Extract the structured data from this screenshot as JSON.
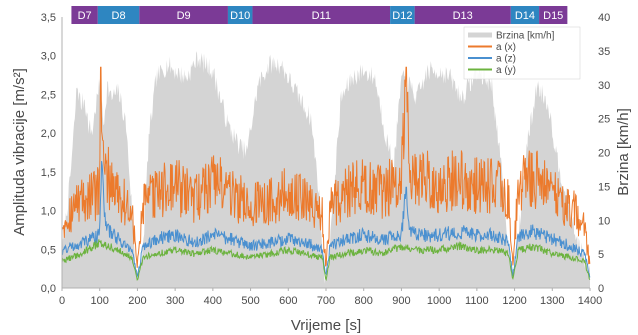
{
  "chart_data": {
    "type": "line",
    "xlabel": "Vrijeme [s]",
    "ylabel": "Amplituda vibracije [m/s²]",
    "y2label": "Brzina [km/h]",
    "xlim": [
      0,
      1400
    ],
    "ylim": [
      0,
      3.5
    ],
    "y2lim": [
      0,
      40
    ],
    "x_ticks": [
      0,
      100,
      200,
      300,
      400,
      500,
      600,
      700,
      800,
      900,
      1000,
      1100,
      1200,
      1300,
      1400
    ],
    "y_ticks": [
      "0,0",
      "0,5",
      "1,0",
      "1,5",
      "2,0",
      "2,5",
      "3,0",
      "3,5"
    ],
    "y2_ticks": [
      "0",
      "5",
      "10",
      "15",
      "20",
      "25",
      "30",
      "35",
      "40"
    ],
    "grid": false,
    "legend_position": "top-right",
    "segments": [
      {
        "label": "D7",
        "start": 25,
        "end": 95,
        "color": "#7b3a96"
      },
      {
        "label": "D8",
        "start": 95,
        "end": 205,
        "color": "#2e86c1"
      },
      {
        "label": "D9",
        "start": 205,
        "end": 440,
        "color": "#7b3a96"
      },
      {
        "label": "D10",
        "start": 440,
        "end": 505,
        "color": "#2e86c1"
      },
      {
        "label": "D11",
        "start": 505,
        "end": 870,
        "color": "#7b3a96"
      },
      {
        "label": "D12",
        "start": 870,
        "end": 935,
        "color": "#2e86c1"
      },
      {
        "label": "D13",
        "start": 935,
        "end": 1190,
        "color": "#7b3a96"
      },
      {
        "label": "D14",
        "start": 1190,
        "end": 1265,
        "color": "#2e86c1"
      },
      {
        "label": "D15",
        "start": 1265,
        "end": 1340,
        "color": "#7b3a96"
      }
    ],
    "series": [
      {
        "name": "Brzina [km/h]",
        "axis": "right",
        "kind": "area",
        "color": "#d4d4d4",
        "x": [
          0,
          20,
          30,
          40,
          50,
          60,
          70,
          80,
          90,
          100,
          110,
          120,
          130,
          150,
          170,
          185,
          195,
          205,
          215,
          230,
          250,
          280,
          300,
          330,
          360,
          400,
          440,
          470,
          490,
          505,
          520,
          550,
          580,
          600,
          630,
          660,
          680,
          695,
          705,
          720,
          740,
          770,
          800,
          830,
          860,
          880,
          900,
          920,
          940,
          970,
          1000,
          1030,
          1060,
          1100,
          1140,
          1170,
          1185,
          1200,
          1215,
          1230,
          1260,
          1290,
          1310,
          1330,
          1345,
          1360,
          1380,
          1400
        ],
        "values": [
          5,
          15,
          22,
          30,
          27,
          28,
          24,
          23,
          27,
          30,
          24,
          30,
          28,
          29,
          24,
          12,
          3,
          2,
          6,
          22,
          31,
          33,
          32,
          31,
          34,
          32,
          24,
          21,
          20,
          25,
          30,
          33,
          33,
          31,
          28,
          25,
          15,
          2,
          3,
          14,
          28,
          31,
          32,
          31,
          22,
          18,
          31,
          30,
          28,
          32,
          32,
          31,
          28,
          32,
          30,
          15,
          5,
          3,
          10,
          20,
          30,
          27,
          20,
          15,
          12,
          8,
          5,
          2
        ]
      },
      {
        "name": "a (x)",
        "axis": "left",
        "kind": "line",
        "color": "#ec7a2c",
        "x": [
          0,
          50,
          100,
          103,
          110,
          150,
          185,
          200,
          215,
          250,
          300,
          350,
          400,
          450,
          500,
          550,
          600,
          650,
          690,
          700,
          710,
          750,
          800,
          850,
          900,
          913,
          920,
          950,
          1000,
          1050,
          1100,
          1150,
          1185,
          1195,
          1210,
          1250,
          1300,
          1350,
          1385,
          1400
        ],
        "values": [
          0.9,
          1.2,
          1.3,
          2.85,
          1.6,
          1.3,
          1.0,
          0.3,
          1.1,
          1.3,
          1.4,
          1.2,
          1.5,
          1.3,
          1.1,
          1.2,
          1.3,
          1.2,
          1.0,
          0.3,
          1.1,
          1.3,
          1.4,
          1.3,
          1.5,
          2.85,
          1.6,
          1.5,
          1.4,
          1.5,
          1.4,
          1.4,
          1.2,
          0.3,
          1.4,
          1.5,
          1.3,
          1.1,
          0.8,
          0.3
        ]
      },
      {
        "name": "a (z)",
        "axis": "left",
        "kind": "line",
        "color": "#4a90d0",
        "x": [
          0,
          50,
          100,
          105,
          115,
          150,
          185,
          200,
          215,
          250,
          300,
          350,
          400,
          450,
          500,
          550,
          600,
          650,
          690,
          700,
          710,
          750,
          800,
          850,
          900,
          913,
          920,
          950,
          1000,
          1050,
          1100,
          1150,
          1185,
          1195,
          1210,
          1250,
          1300,
          1350,
          1385,
          1400
        ],
        "values": [
          0.5,
          0.6,
          0.7,
          1.85,
          0.8,
          0.65,
          0.5,
          0.15,
          0.55,
          0.65,
          0.7,
          0.6,
          0.7,
          0.65,
          0.55,
          0.6,
          0.65,
          0.6,
          0.5,
          0.15,
          0.55,
          0.65,
          0.7,
          0.65,
          0.7,
          1.3,
          0.75,
          0.7,
          0.7,
          0.75,
          0.7,
          0.7,
          0.6,
          0.15,
          0.7,
          0.75,
          0.65,
          0.55,
          0.45,
          0.15
        ]
      },
      {
        "name": "a (y)",
        "axis": "left",
        "kind": "line",
        "color": "#6cb33f",
        "x": [
          0,
          50,
          100,
          150,
          185,
          200,
          215,
          250,
          300,
          350,
          400,
          450,
          500,
          550,
          600,
          650,
          690,
          700,
          710,
          750,
          800,
          850,
          900,
          950,
          1000,
          1050,
          1100,
          1150,
          1185,
          1195,
          1210,
          1250,
          1300,
          1350,
          1385,
          1400
        ],
        "values": [
          0.35,
          0.45,
          0.6,
          0.5,
          0.4,
          0.1,
          0.4,
          0.45,
          0.5,
          0.45,
          0.5,
          0.45,
          0.4,
          0.45,
          0.5,
          0.45,
          0.4,
          0.1,
          0.4,
          0.45,
          0.5,
          0.45,
          0.55,
          0.5,
          0.5,
          0.55,
          0.5,
          0.5,
          0.45,
          0.1,
          0.5,
          0.55,
          0.45,
          0.4,
          0.35,
          0.1
        ]
      }
    ]
  }
}
